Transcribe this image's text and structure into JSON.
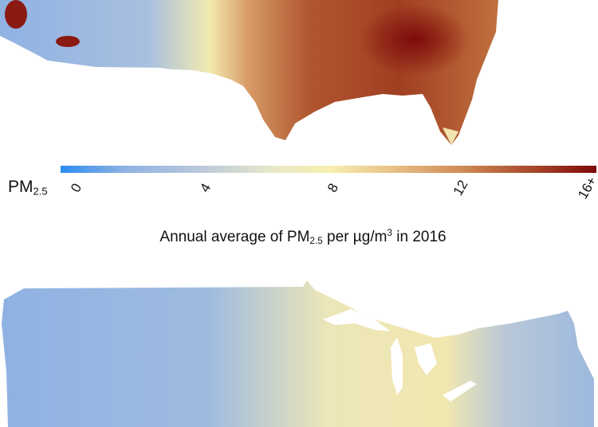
{
  "legend": {
    "variable_main": "PM",
    "variable_sub": "2.5",
    "ticks": [
      "0",
      "4",
      "8",
      "12",
      "16+"
    ],
    "range": [
      0,
      16
    ],
    "colors": [
      "#2b8cf0",
      "#b7c6dc",
      "#f7f0ae",
      "#cf8a55",
      "#7e0a0a"
    ]
  },
  "title": {
    "prefix": "Annual average of PM",
    "sub": "2.5",
    "middle": " per µg/m",
    "sup": "3",
    "suffix": " in 2016"
  }
}
